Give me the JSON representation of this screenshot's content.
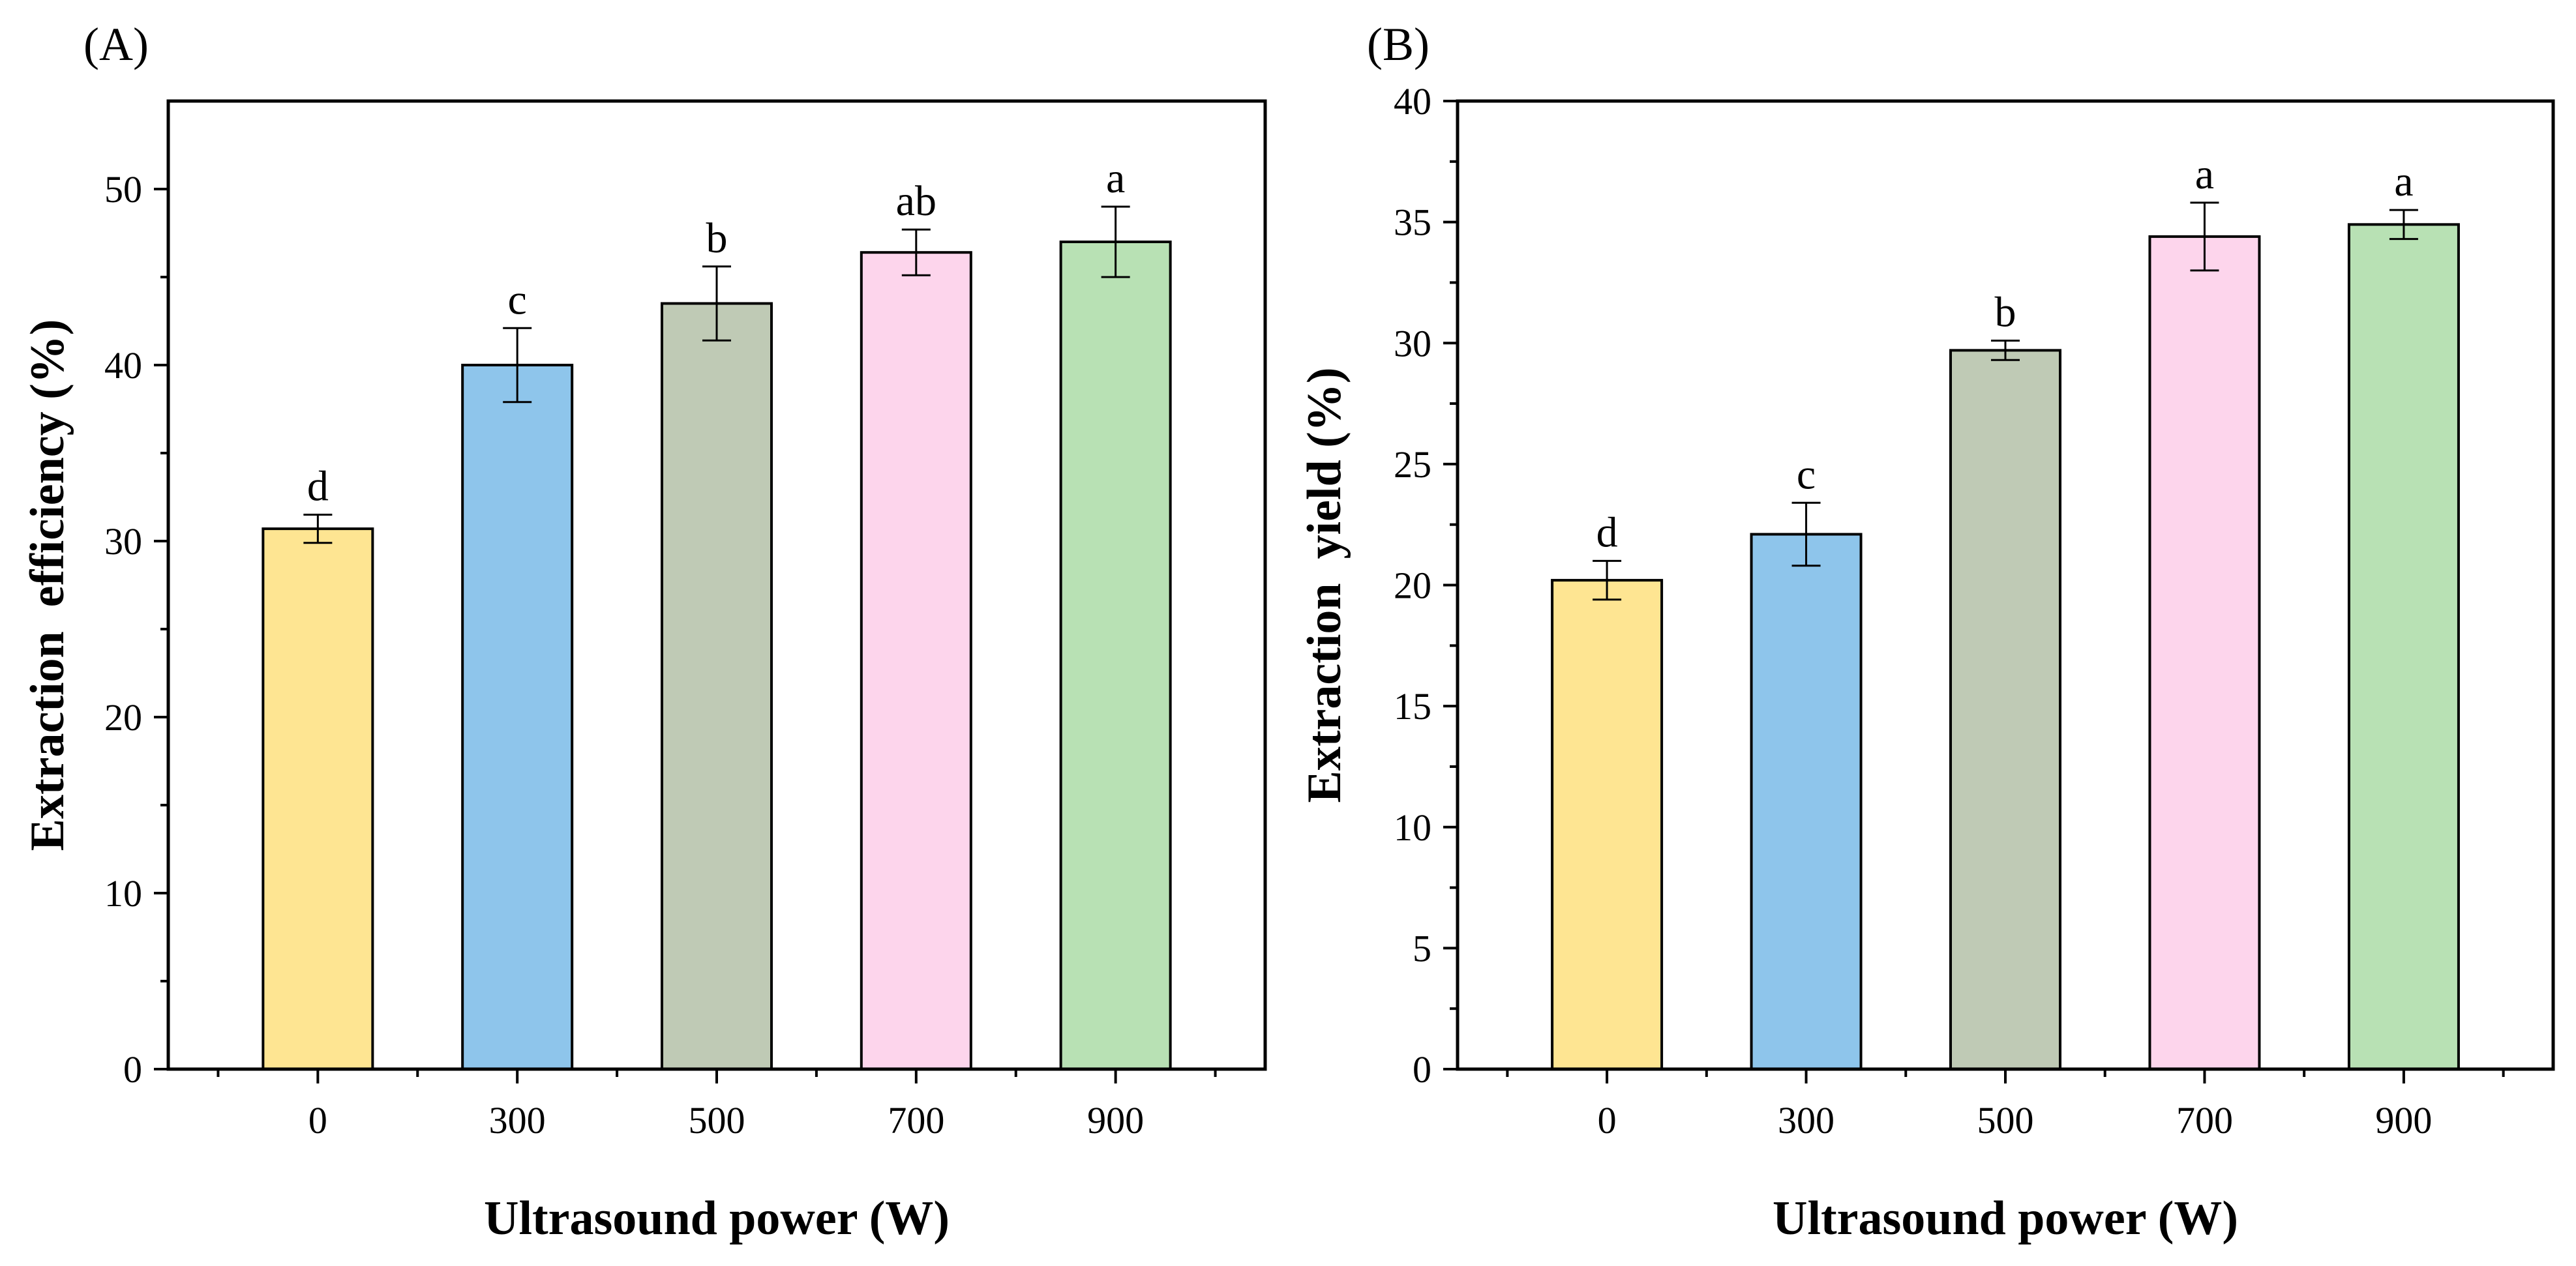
{
  "colors": {
    "bar_0": "#FEE592",
    "bar_300": "#8EC5EB",
    "bar_500": "#BFCAB5",
    "bar_700": "#FDD5EC",
    "bar_900": "#B8E1B4",
    "axis": "#000000"
  },
  "chart_data": [
    {
      "type": "bar",
      "panel_label": "(A)",
      "categories": [
        "0",
        "300",
        "500",
        "700",
        "900"
      ],
      "values": [
        30.7,
        40.0,
        43.5,
        46.4,
        47.0
      ],
      "errors": [
        0.8,
        2.1,
        2.1,
        1.3,
        2.0
      ],
      "significance": [
        "d",
        "c",
        "b",
        "ab",
        "a"
      ],
      "xlabel": "Ultrasound power (W)",
      "ylabel": "Extraction  efficiency (%)",
      "ylim": [
        0,
        55
      ],
      "yticks": [
        0,
        10,
        20,
        30,
        40,
        50
      ],
      "ytick_labels": [
        "0",
        "10",
        "20",
        "30",
        "40",
        "50"
      ],
      "minor_ytick_step": 5,
      "grid": false
    },
    {
      "type": "bar",
      "panel_label": "(B)",
      "categories": [
        "0",
        "300",
        "500",
        "700",
        "900"
      ],
      "values": [
        20.2,
        22.1,
        29.7,
        34.4,
        34.9
      ],
      "errors": [
        0.8,
        1.3,
        0.4,
        1.4,
        0.6
      ],
      "significance": [
        "d",
        "c",
        "b",
        "a",
        "a"
      ],
      "xlabel": "Ultrasound power (W)",
      "ylabel": "Extraction  yield (%)",
      "ylim": [
        0,
        40
      ],
      "yticks": [
        0,
        5,
        10,
        15,
        20,
        25,
        30,
        35,
        40
      ],
      "ytick_labels": [
        "0",
        "5",
        "10",
        "15",
        "20",
        "25",
        "30",
        "35",
        "40"
      ],
      "minor_ytick_step": 2.5,
      "grid": false
    }
  ]
}
